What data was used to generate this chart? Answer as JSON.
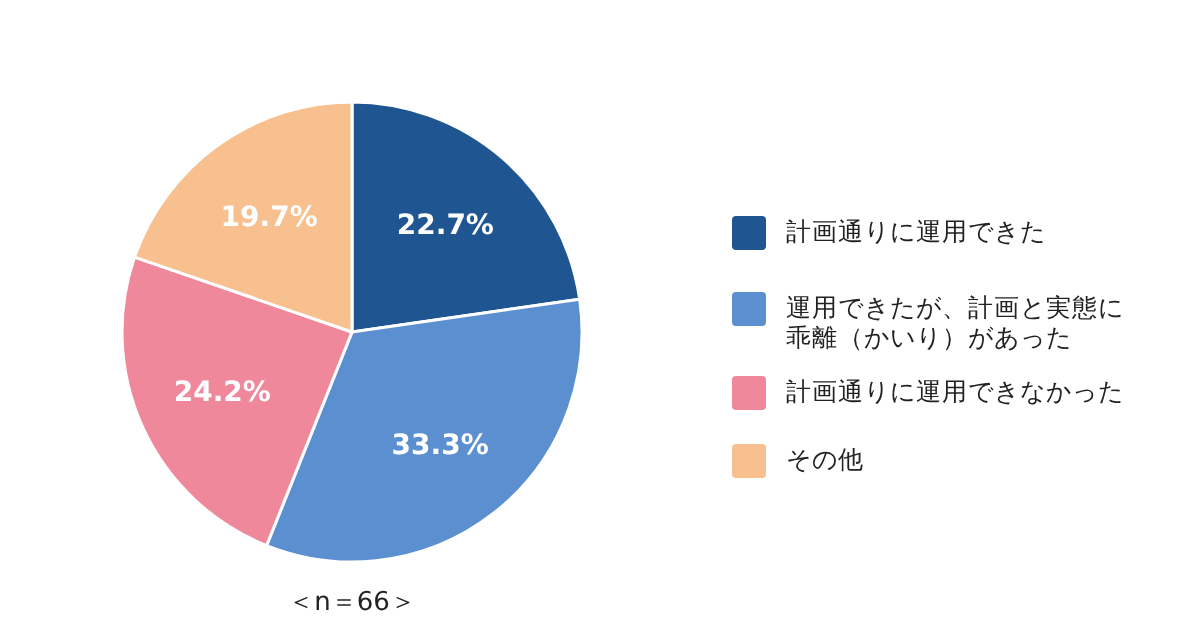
{
  "chart_data": {
    "type": "pie",
    "categories": [
      "計画通りに運用できた",
      "運用できたが、計画と実態に乖離（かいり）があった",
      "計画通りに運用できなかった",
      "その他"
    ],
    "values": [
      22.7,
      33.3,
      24.2,
      19.7
    ],
    "value_labels": [
      "22.7%",
      "33.3%",
      "24.2%",
      "19.7%"
    ],
    "colors": [
      "#1f5591",
      "#5b8fcf",
      "#f0889c",
      "#f7c08e"
    ],
    "legend": "right",
    "annotations": [
      "＜n＝66＞"
    ]
  }
}
